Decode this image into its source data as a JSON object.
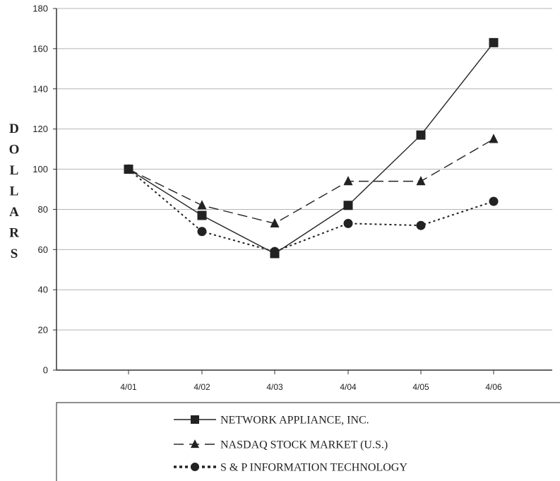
{
  "chart_data": {
    "type": "line",
    "title": "",
    "xlabel": "",
    "ylabel": "DOLLARS",
    "categories": [
      "4/01",
      "4/02",
      "4/03",
      "4/04",
      "4/05",
      "4/06"
    ],
    "ylim": [
      0,
      180
    ],
    "yticks": [
      0,
      20,
      40,
      60,
      80,
      100,
      120,
      140,
      160,
      180
    ],
    "grid": true,
    "legend_position": "bottom",
    "series": [
      {
        "name": "NETWORK APPLIANCE, INC.",
        "values": [
          100,
          77,
          58,
          82,
          117,
          163
        ],
        "line_style": "solid",
        "marker": "square",
        "color": "#222222"
      },
      {
        "name": "NASDAQ STOCK MARKET (U.S.)",
        "values": [
          100,
          82,
          73,
          94,
          94,
          115
        ],
        "line_style": "dashed",
        "marker": "triangle",
        "color": "#222222"
      },
      {
        "name": "S & P INFORMATION TECHNOLOGY",
        "values": [
          100,
          69,
          59,
          73,
          72,
          84
        ],
        "line_style": "dotted",
        "marker": "circle",
        "color": "#222222"
      }
    ]
  }
}
